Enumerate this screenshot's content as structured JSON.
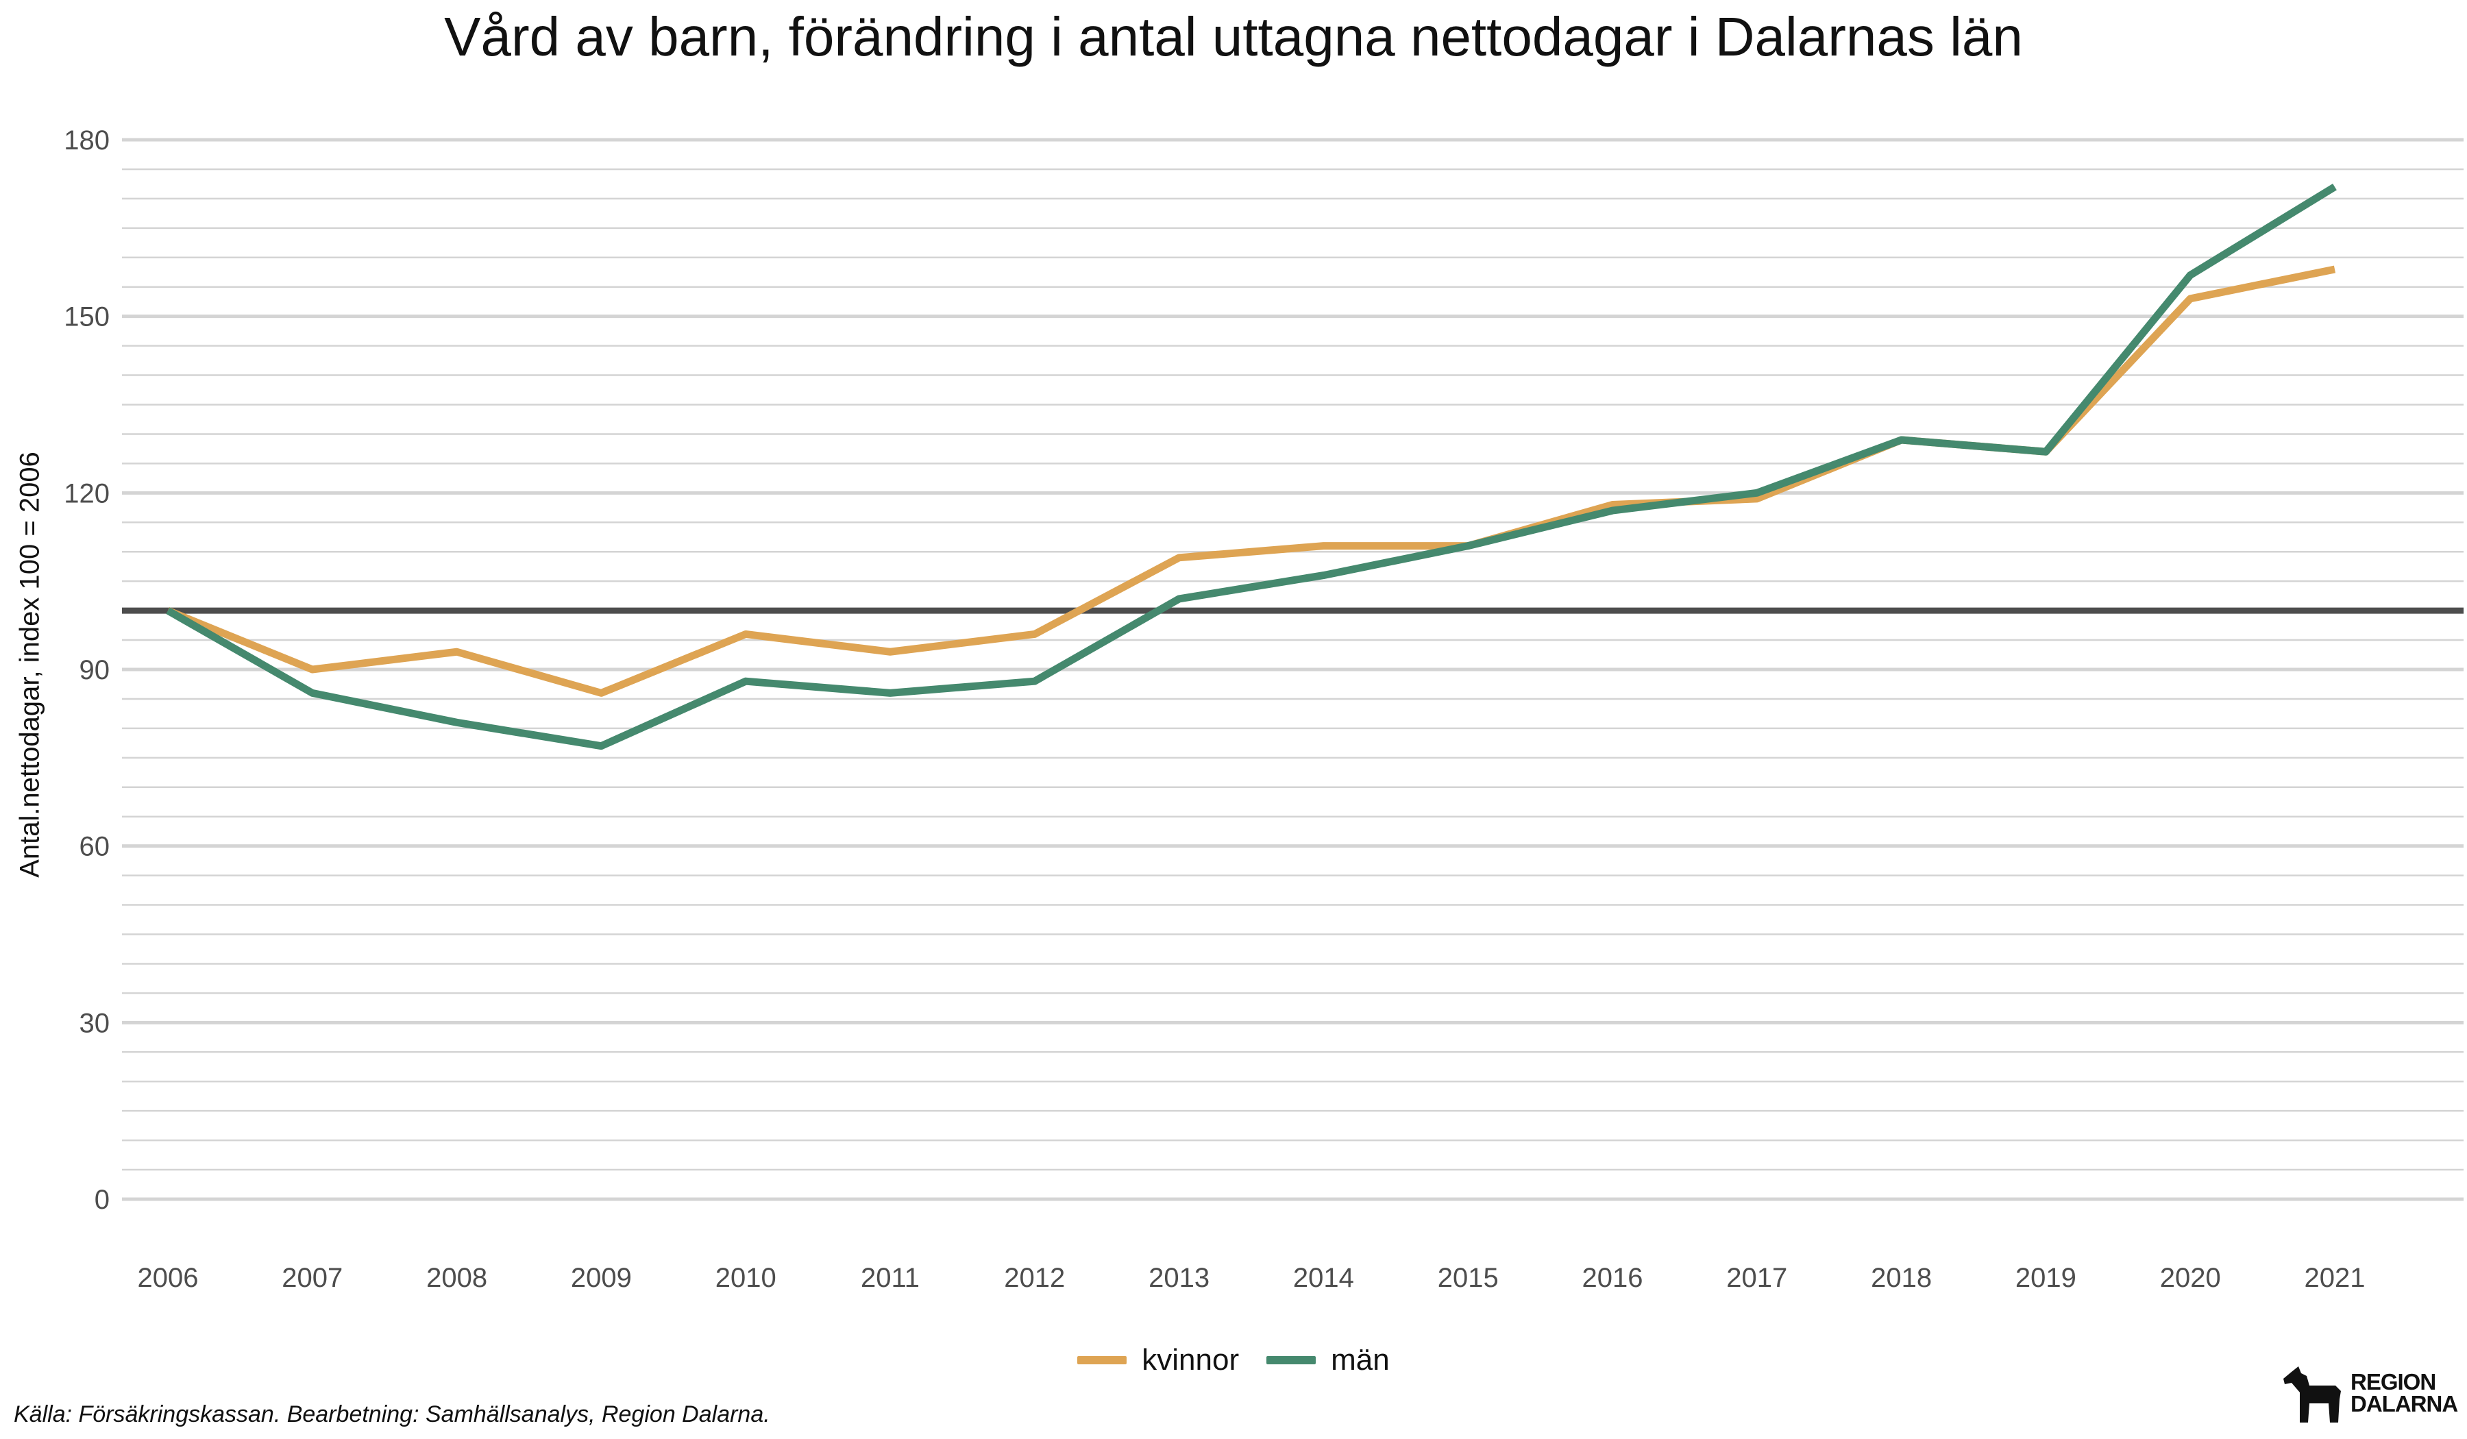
{
  "title": "Vård av barn, förändring i antal uttagna nettodagar i Dalarnas län",
  "caption": "Källa: Försäkringskassan. Bearbetning: Samhällsanalys, Region Dalarna.",
  "logo": {
    "line1": "REGION",
    "line2": "DALARNA"
  },
  "colors": {
    "kvinnor": "#dea453",
    "man": "#45896e",
    "reference": "#4d4d4d",
    "grid": "#d4d4d4"
  },
  "chart_data": {
    "type": "line",
    "title": "Vård av barn, förändring i antal uttagna nettodagar i Dalarnas län",
    "xlabel": "",
    "ylabel": "Antal.nettodagar, index 100 = 2006",
    "x": [
      2006,
      2007,
      2008,
      2009,
      2010,
      2011,
      2012,
      2013,
      2014,
      2015,
      2016,
      2017,
      2018,
      2019,
      2020,
      2021
    ],
    "series": [
      {
        "name": "kvinnor",
        "values": [
          100,
          90,
          93,
          86,
          96,
          93,
          96,
          109,
          111,
          111,
          118,
          119,
          129,
          127,
          153,
          158
        ]
      },
      {
        "name": "män",
        "values": [
          100,
          86,
          81,
          77,
          88,
          86,
          88,
          102,
          106,
          111,
          117,
          120,
          129,
          127,
          157,
          172
        ]
      }
    ],
    "reference_line": 100,
    "ylim": [
      0,
      180
    ],
    "yticks": [
      0,
      30,
      60,
      90,
      120,
      150,
      180
    ],
    "grid": true,
    "legend": "bottom"
  }
}
